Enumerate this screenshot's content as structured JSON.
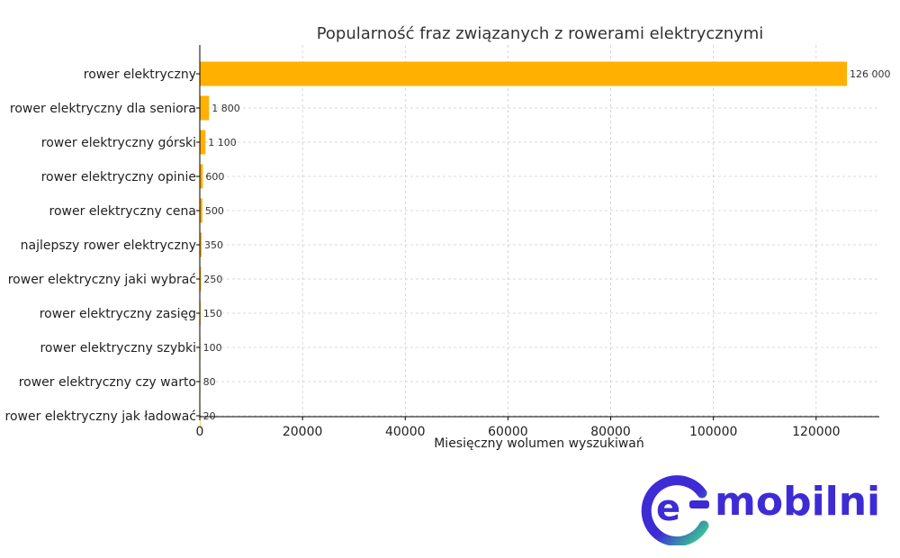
{
  "chart_data": {
    "type": "bar",
    "orientation": "horizontal",
    "title": "Popularność fraz związanych z rowerami elektrycznymi",
    "xlabel": "Miesięczny wolumen wyszukiwań",
    "ylabel": "",
    "categories": [
      "rower elektryczny",
      "rower elektryczny dla seniora",
      "rower elektryczny górski",
      "rower elektryczny opinie",
      "rower elektryczny cena",
      "najlepszy rower elektryczny",
      "rower elektryczny jaki wybrać",
      "rower elektryczny zasięg",
      "rower elektryczny szybki",
      "rower elektryczny czy warto",
      "rower elektryczny jak ładować"
    ],
    "values": [
      126000,
      1800,
      1100,
      600,
      500,
      350,
      250,
      150,
      100,
      80,
      20
    ],
    "data_labels": [
      "126 000",
      "1 800",
      "1 100",
      "600",
      "500",
      "350",
      "250",
      "150",
      "100",
      "80",
      "20"
    ],
    "xticks": [
      "0",
      "20000",
      "40000",
      "60000",
      "80000",
      "100000",
      "120000"
    ],
    "xlim": [
      0,
      132300
    ],
    "grid": true,
    "bar_color": "#ffb000"
  },
  "logo": {
    "text": "mobilni",
    "brand_color": "#3d2bd6",
    "accent_color": "#39d98a"
  }
}
